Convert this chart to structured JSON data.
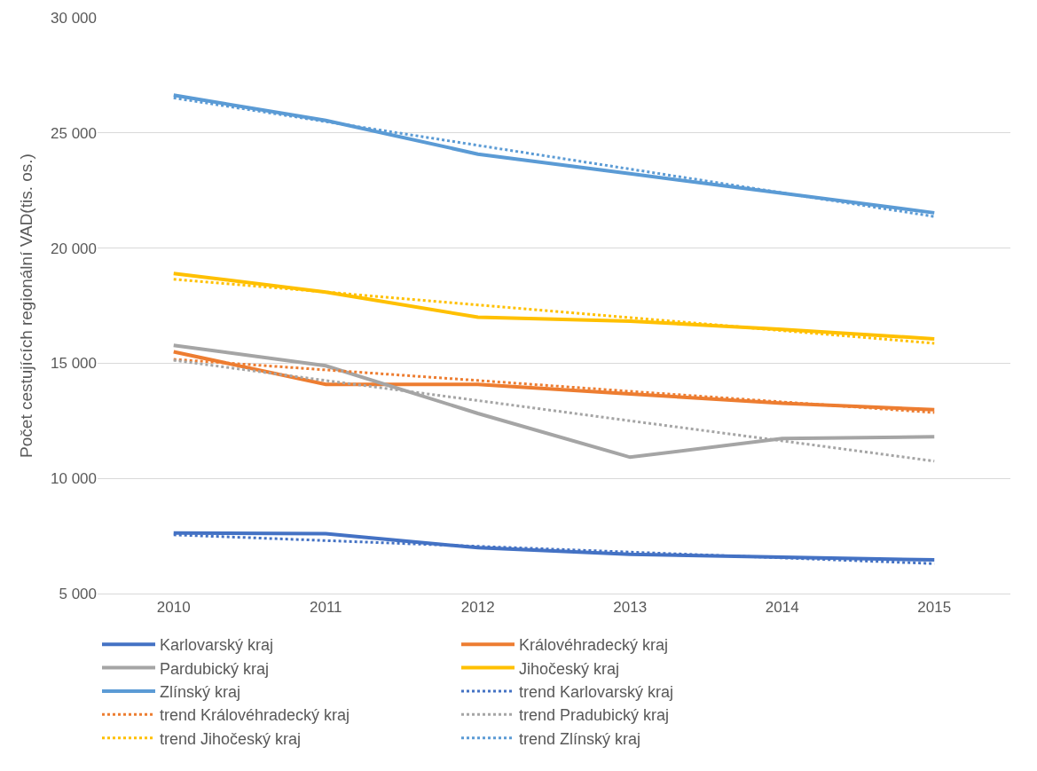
{
  "chart_data": {
    "type": "line",
    "ylabel": "Počet cestujících regionální VAD(tis. os.)",
    "categories": [
      "2010",
      "2011",
      "2012",
      "2013",
      "2014",
      "2015"
    ],
    "ylim": [
      5000,
      30000
    ],
    "yticks": [
      {
        "value": 5000,
        "label": "5 000"
      },
      {
        "value": 10000,
        "label": "10 000"
      },
      {
        "value": 15000,
        "label": "15 000"
      },
      {
        "value": 20000,
        "label": "20 000"
      },
      {
        "value": 25000,
        "label": "25 000"
      },
      {
        "value": 30000,
        "label": "30 000"
      }
    ],
    "grid": "y",
    "legend": "bottom",
    "marker": "none",
    "series": [
      {
        "name": "Karlovarský kraj",
        "color": "#4472c4",
        "line_style": "solid",
        "values": [
          7630,
          7600,
          6990,
          6700,
          6580,
          6460
        ]
      },
      {
        "name": "Královéhradecký kraj",
        "color": "#ed7d31",
        "line_style": "solid",
        "values": [
          15500,
          14080,
          14080,
          13670,
          13260,
          12980
        ]
      },
      {
        "name": "Pardubický kraj",
        "color": "#a5a5a5",
        "line_style": "solid",
        "values": [
          15780,
          14890,
          12820,
          10920,
          11730,
          11810
        ]
      },
      {
        "name": "Jihočeský kraj",
        "color": "#ffc000",
        "line_style": "solid",
        "values": [
          18900,
          18090,
          17000,
          16830,
          16470,
          16060
        ]
      },
      {
        "name": "Zlínský kraj",
        "color": "#5b9bd5",
        "line_style": "solid",
        "values": [
          26640,
          25540,
          24080,
          23230,
          22380,
          21530
        ]
      },
      {
        "name": "trend Karlovarský kraj",
        "color": "#4472c4",
        "line_style": "dotted",
        "values": [
          7550,
          7300,
          7050,
          6800,
          6550,
          6300
        ]
      },
      {
        "name": "trend Královéhradecký kraj",
        "color": "#ed7d31",
        "line_style": "dotted",
        "values": [
          15170,
          14710,
          14250,
          13780,
          13320,
          12860
        ]
      },
      {
        "name": "trend Pradubický kraj",
        "color": "#a5a5a5",
        "line_style": "dotted",
        "values": [
          15130,
          14250,
          13380,
          12500,
          11630,
          10750
        ]
      },
      {
        "name": "trend Jihočeský kraj",
        "color": "#ffc000",
        "line_style": "dotted",
        "values": [
          18650,
          18090,
          17530,
          16980,
          16420,
          15860
        ]
      },
      {
        "name": "trend Zlínský kraj",
        "color": "#5b9bd5",
        "line_style": "dotted",
        "values": [
          26520,
          25490,
          24460,
          23430,
          22400,
          21370
        ]
      }
    ]
  }
}
